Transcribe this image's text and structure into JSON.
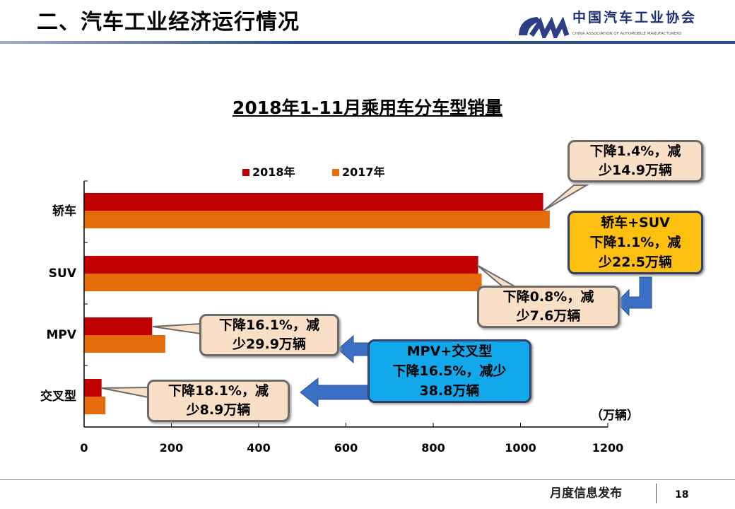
{
  "header": {
    "title": "二、汽车工业经济运行情况",
    "logo_cn": "中国汽车工业协会",
    "logo_en": "CHINA ASSOCIATION OF AUTOMOBILE MANUFACTURERS",
    "logo_mark": "CAAM"
  },
  "chart_data": {
    "type": "bar",
    "orientation": "horizontal",
    "title": "2018年1-11月乘用车分车型销量",
    "categories": [
      "轿车",
      "SUV",
      "MPV",
      "交叉型"
    ],
    "series": [
      {
        "name": "2018年",
        "color": "#c00000",
        "values": [
          1052,
          903,
          156,
          40
        ]
      },
      {
        "name": "2017年",
        "color": "#e46c0a",
        "values": [
          1067,
          911,
          186,
          49
        ]
      }
    ],
    "xlim": [
      0,
      1200
    ],
    "xticks": [
      "0",
      "200",
      "400",
      "600",
      "800",
      "1000",
      "1200"
    ],
    "unit": "（万辆）",
    "legend": "top",
    "annotations": [
      {
        "lines": [
          "下降1.4%，减",
          "少14.9万辆"
        ]
      },
      {
        "lines": [
          "轿车+SUV",
          "下降1.1%，减",
          "少22.5万辆"
        ]
      },
      {
        "lines": [
          "下降0.8%，减",
          "少7.6万辆"
        ]
      },
      {
        "lines": [
          "下降16.1%，减",
          "少29.9万辆"
        ]
      },
      {
        "lines": [
          "MPV+交叉型",
          "下降16.5%，减少",
          "38.8万辆"
        ]
      },
      {
        "lines": [
          "下降18.1%，减",
          "少8.9万辆"
        ]
      }
    ]
  },
  "footer": {
    "text": "月度信息发布",
    "page": "18"
  }
}
